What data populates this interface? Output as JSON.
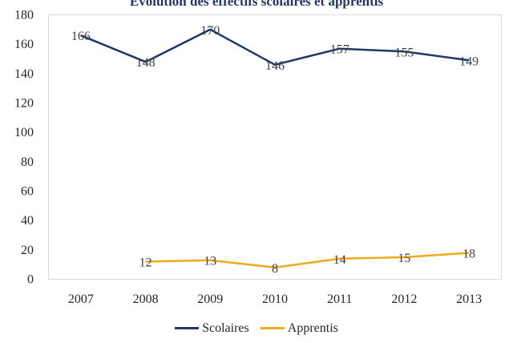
{
  "chart_data": {
    "type": "line",
    "title": "Évolution des effectifs scolaires et apprentis",
    "categories": [
      "2007",
      "2008",
      "2009",
      "2010",
      "2011",
      "2012",
      "2013"
    ],
    "ylim": [
      0,
      180
    ],
    "yticks": [
      0,
      20,
      40,
      60,
      80,
      100,
      120,
      140,
      160,
      180
    ],
    "grid": false,
    "legend_position": "bottom",
    "series": [
      {
        "name": "Scolaires",
        "color": "#1f3864",
        "values": [
          166,
          148,
          170,
          146,
          157,
          155,
          149
        ]
      },
      {
        "name": "Apprentis",
        "color": "#f2a81d",
        "values": [
          null,
          12,
          13,
          8,
          14,
          15,
          18
        ]
      }
    ]
  }
}
